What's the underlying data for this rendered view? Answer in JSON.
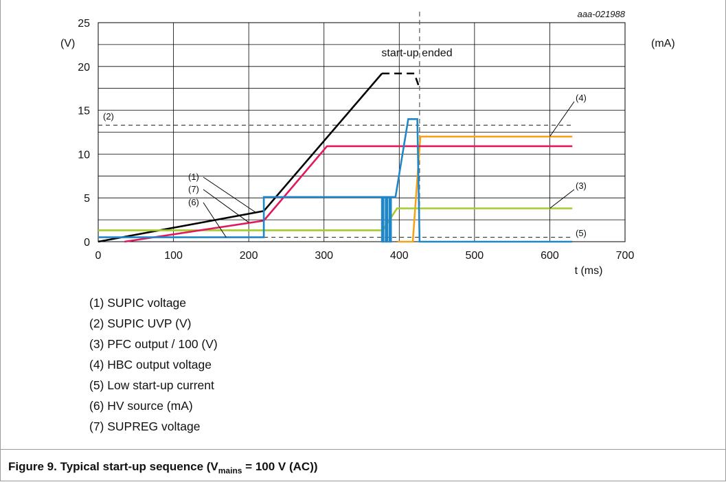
{
  "chart_data": {
    "type": "line",
    "image_id": "aaa-021988",
    "x_axis": {
      "label": "t (ms)",
      "min": 0,
      "max": 700,
      "ticks": [
        0,
        100,
        200,
        300,
        400,
        500,
        600,
        700
      ],
      "minor_grid": 50
    },
    "y_axis": {
      "left_unit": "(V)",
      "right_unit": "(mA)",
      "min": 0,
      "max": 25,
      "ticks": [
        0,
        5,
        10,
        15,
        20,
        25
      ],
      "minor_grid": 2.5
    },
    "grid": true,
    "annotations": [
      {
        "text": "start-up ended",
        "x": 427
      },
      {
        "text": "(1)"
      },
      {
        "text": "(7)"
      },
      {
        "text": "(6)"
      },
      {
        "text": "(2)"
      },
      {
        "text": "(3)"
      },
      {
        "text": "(4)"
      },
      {
        "text": "(5)"
      }
    ],
    "series": [
      {
        "name": "(1) SUPIC voltage",
        "color": "#000000",
        "dash": false,
        "points": [
          [
            0,
            0
          ],
          [
            220,
            3.5
          ],
          [
            377,
            19.2
          ]
        ]
      },
      {
        "name": "(1) SUPIC voltage",
        "color": "#000000",
        "dash": true,
        "points": [
          [
            377,
            19.2
          ],
          [
            420,
            19.2
          ],
          [
            427,
            17.5
          ]
        ]
      },
      {
        "name": "(2) SUPIC UVP (V)",
        "color": "#333333",
        "dash": true,
        "points": [
          [
            0,
            13.3
          ],
          [
            630,
            13.3
          ]
        ]
      },
      {
        "name": "(3) PFC output / 100 (V)",
        "color": "#a4cc2a",
        "dash": false,
        "points": [
          [
            0,
            1.3
          ],
          [
            378,
            1.3
          ],
          [
            397,
            3.8
          ],
          [
            630,
            3.8
          ]
        ]
      },
      {
        "name": "(4) HBC output voltage",
        "color": "#f5a21a",
        "dash": false,
        "points": [
          [
            398,
            0
          ],
          [
            418,
            0
          ],
          [
            428,
            12
          ],
          [
            630,
            12
          ]
        ]
      },
      {
        "name": "(5) Low start-up current",
        "color": "#333333",
        "dash": true,
        "points": [
          [
            220,
            0.5
          ],
          [
            630,
            0.5
          ]
        ]
      },
      {
        "name": "(6) HV source (mA)",
        "color": "#1f86c8",
        "dash": false,
        "points": [
          [
            0,
            0.5
          ],
          [
            220,
            0.5
          ],
          [
            220,
            5.1
          ],
          [
            377,
            5.1
          ],
          [
            377,
            0
          ],
          [
            379,
            0
          ],
          [
            379,
            5.1
          ],
          [
            382,
            5.1
          ],
          [
            382,
            0
          ],
          [
            384,
            0
          ],
          [
            384,
            5.1
          ],
          [
            387,
            5.1
          ],
          [
            387,
            0
          ],
          [
            389,
            0
          ],
          [
            389,
            5.1
          ],
          [
            395,
            5.1
          ],
          [
            412,
            14
          ],
          [
            424,
            14
          ],
          [
            427,
            0
          ],
          [
            630,
            0
          ]
        ]
      },
      {
        "name": "(7) SUPREG voltage",
        "color": "#e0195c",
        "dash": false,
        "points": [
          [
            35,
            0
          ],
          [
            220,
            2.4
          ],
          [
            304,
            10.9
          ],
          [
            630,
            10.9
          ]
        ]
      }
    ]
  },
  "legend": [
    {
      "text": "(1) SUPIC voltage"
    },
    {
      "text": "(2) SUPIC UVP (V)"
    },
    {
      "text": "(3) PFC output / 100 (V)"
    },
    {
      "text": "(4) HBC output voltage"
    },
    {
      "text": "(5) Low start-up current"
    },
    {
      "text": "(6) HV source (mA)"
    },
    {
      "text": "(7) SUPREG voltage"
    }
  ],
  "caption": {
    "prefix": "Figure 9.  Typical start-up sequence (V",
    "sub": "mains",
    "suffix": " = 100 V (AC))"
  }
}
